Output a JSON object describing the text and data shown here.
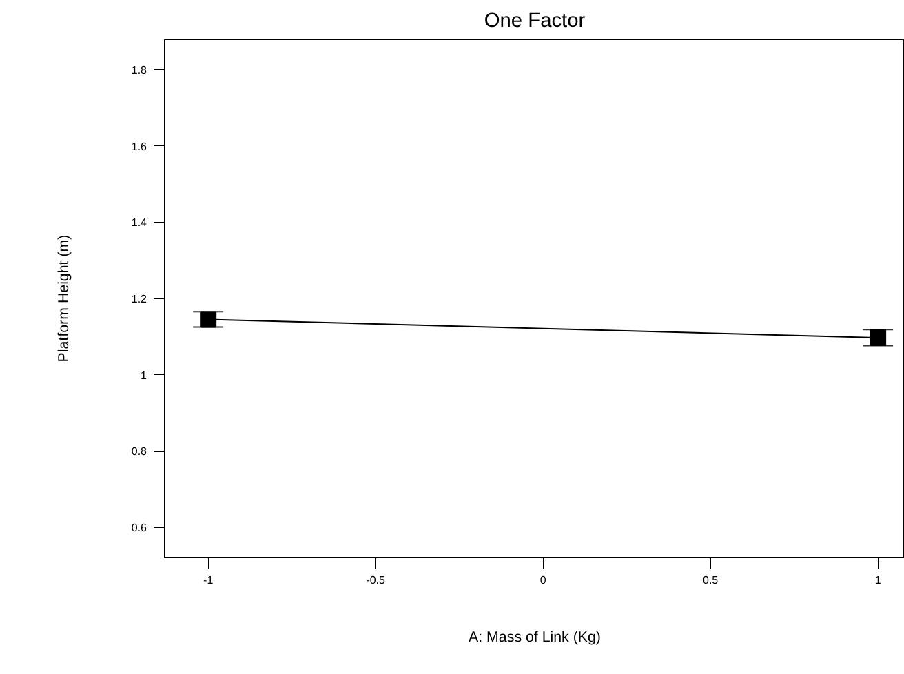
{
  "chart_data": {
    "type": "line",
    "title": "One Factor",
    "xlabel": "A: Mass of Link (Kg)",
    "ylabel": "Platform Height (m)",
    "x": [
      -1,
      1
    ],
    "series": [
      {
        "color": "#000000",
        "values": [
          1.145,
          1.097
        ],
        "errors": [
          0.02,
          0.021
        ]
      }
    ],
    "marker": "square",
    "line_style": "solid",
    "grid": false,
    "xlim": [
      -1.13,
      1.08
    ],
    "xticks": [
      -1,
      -0.5,
      0,
      0.5,
      1
    ],
    "ylim": [
      0.52,
      1.88
    ],
    "yticks": [
      0.6,
      0.8,
      1,
      1.2,
      1.4,
      1.6,
      1.8
    ]
  }
}
